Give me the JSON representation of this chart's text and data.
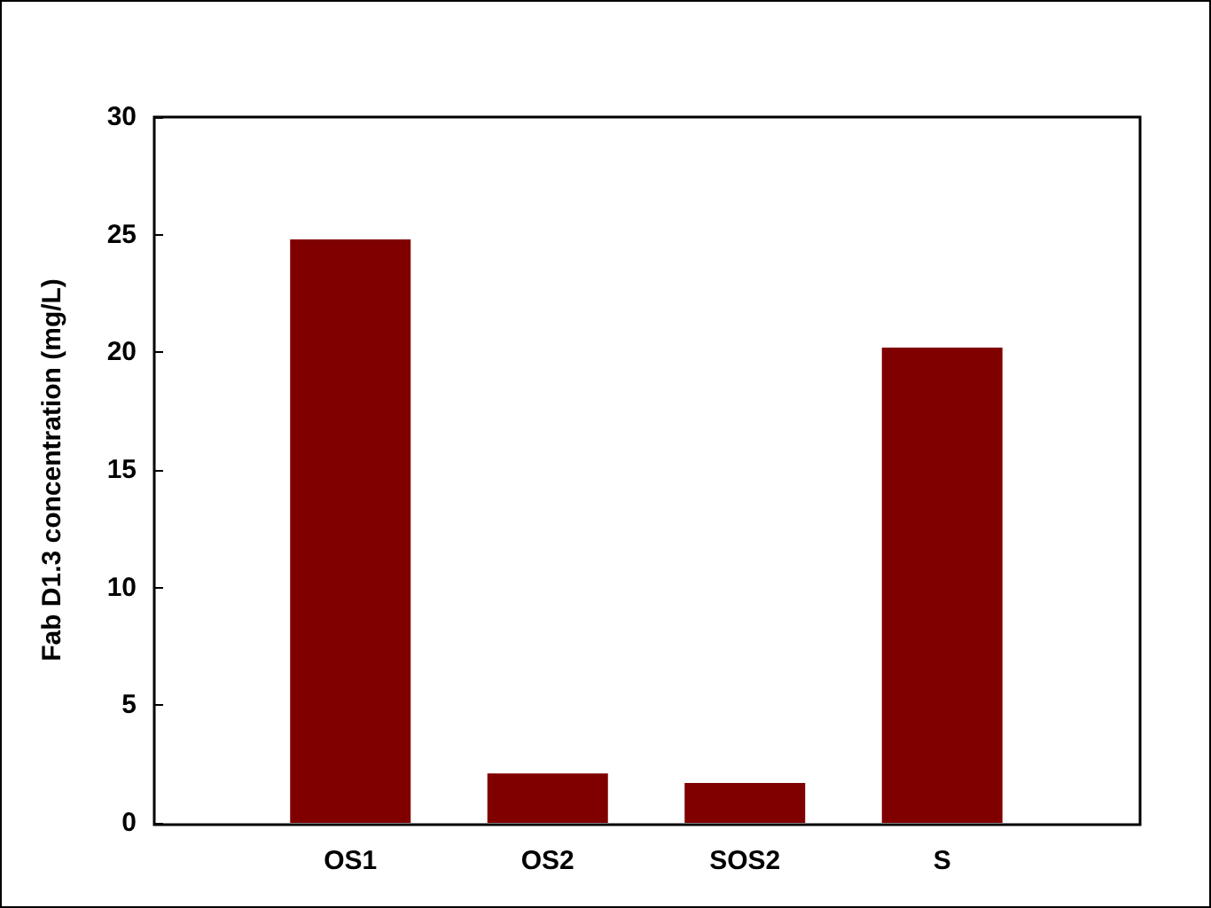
{
  "chart_data": {
    "type": "bar",
    "ylabel": "Fab D1.3 concentration (mg/L)",
    "categories": [
      "OS1",
      "OS2",
      "SOS2",
      "S"
    ],
    "values": [
      24.8,
      2.1,
      1.7,
      20.2
    ],
    "color": "#800000",
    "ylim": [
      0,
      30
    ],
    "yticks": [
      0,
      5,
      10,
      15,
      20,
      25,
      30
    ],
    "grid": false
  }
}
